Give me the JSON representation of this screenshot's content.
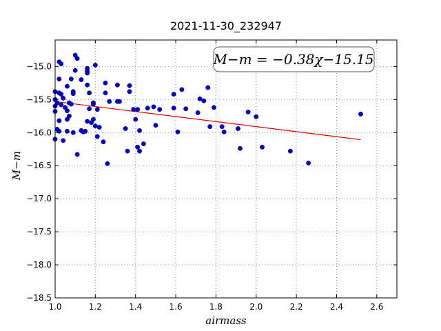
{
  "chart_data": {
    "type": "scatter",
    "title": "2021-11-30_232947",
    "xlabel": "airmass",
    "ylabel": "M−m",
    "xlim": [
      1.0,
      2.7
    ],
    "ylim": [
      -18.5,
      -14.6
    ],
    "y_inverted": true,
    "grid": true,
    "xticks": [
      1.0,
      1.2,
      1.4,
      1.6,
      1.8,
      2.0,
      2.2,
      2.4,
      2.6
    ],
    "xtick_labels": [
      "1.0",
      "1.2",
      "1.4",
      "1.6",
      "1.8",
      "2.0",
      "2.2",
      "2.4",
      "2.6"
    ],
    "yticks": [
      -15.0,
      -15.5,
      -16.0,
      -16.5,
      -17.0,
      -17.5,
      -18.0,
      -18.5
    ],
    "ytick_labels": [
      "−15.0",
      "−15.5",
      "−16.0",
      "−16.5",
      "−17.0",
      "−17.5",
      "−18.0",
      "−18.5"
    ],
    "annotation": "M−m = −0.38χ−15.15",
    "point_color": "#0000cc",
    "fit_color": "#dd0000",
    "points": [
      [
        1.0,
        -15.38
      ],
      [
        1.0,
        -15.5
      ],
      [
        1.0,
        -15.6
      ],
      [
        1.0,
        -15.68
      ],
      [
        1.0,
        -16.1
      ],
      [
        1.01,
        -15.95
      ],
      [
        1.01,
        -15.55
      ],
      [
        1.02,
        -14.93
      ],
      [
        1.02,
        -15.4
      ],
      [
        1.02,
        -15.82
      ],
      [
        1.02,
        -15.98
      ],
      [
        1.03,
        -14.96
      ],
      [
        1.02,
        -15.19
      ],
      [
        1.03,
        -15.42
      ],
      [
        1.03,
        -15.58
      ],
      [
        1.04,
        -15.48
      ],
      [
        1.04,
        -16.12
      ],
      [
        1.05,
        -15.62
      ],
      [
        1.06,
        -15.98
      ],
      [
        1.06,
        -15.3
      ],
      [
        1.06,
        -15.67
      ],
      [
        1.06,
        -15.8
      ],
      [
        1.07,
        -15.75
      ],
      [
        1.07,
        -15.55
      ],
      [
        1.08,
        -15.19
      ],
      [
        1.08,
        -15.57
      ],
      [
        1.09,
        -15.38
      ],
      [
        1.09,
        -15.41
      ],
      [
        1.09,
        -16.0
      ],
      [
        1.1,
        -14.83
      ],
      [
        1.1,
        -15.06
      ],
      [
        1.11,
        -14.88
      ],
      [
        1.11,
        -16.33
      ],
      [
        1.13,
        -15.97
      ],
      [
        1.13,
        -15.2
      ],
      [
        1.14,
        -15.99
      ],
      [
        1.15,
        -15.98
      ],
      [
        1.16,
        -15.83
      ],
      [
        1.16,
        -15.03
      ],
      [
        1.16,
        -15.07
      ],
      [
        1.16,
        -15.1
      ],
      [
        1.16,
        -15.28
      ],
      [
        1.17,
        -15.64
      ],
      [
        1.17,
        -15.4
      ],
      [
        1.18,
        -15.85
      ],
      [
        1.19,
        -15.55
      ],
      [
        1.19,
        -15.57
      ],
      [
        1.19,
        -15.8
      ],
      [
        1.2,
        -14.98
      ],
      [
        1.2,
        -15.9
      ],
      [
        1.21,
        -15.65
      ],
      [
        1.21,
        -16.06
      ],
      [
        1.22,
        -15.92
      ],
      [
        1.24,
        -16.14
      ],
      [
        1.25,
        -15.25
      ],
      [
        1.25,
        -15.4
      ],
      [
        1.26,
        -16.47
      ],
      [
        1.27,
        -15.53
      ],
      [
        1.31,
        -15.28
      ],
      [
        1.31,
        -15.53
      ],
      [
        1.32,
        -15.53
      ],
      [
        1.35,
        -15.94
      ],
      [
        1.36,
        -16.28
      ],
      [
        1.37,
        -15.29
      ],
      [
        1.37,
        -15.38
      ],
      [
        1.39,
        -15.65
      ],
      [
        1.4,
        -15.8
      ],
      [
        1.41,
        -15.65
      ],
      [
        1.41,
        -16.22
      ],
      [
        1.42,
        -15.97
      ],
      [
        1.42,
        -16.28
      ],
      [
        1.44,
        -16.17
      ],
      [
        1.46,
        -15.63
      ],
      [
        1.49,
        -15.61
      ],
      [
        1.5,
        -15.89
      ],
      [
        1.52,
        -15.65
      ],
      [
        1.59,
        -15.42
      ],
      [
        1.59,
        -15.63
      ],
      [
        1.61,
        -15.99
      ],
      [
        1.63,
        -15.35
      ],
      [
        1.65,
        -15.64
      ],
      [
        1.71,
        -15.7
      ],
      [
        1.72,
        -15.49
      ],
      [
        1.74,
        -15.52
      ],
      [
        1.76,
        -15.32
      ],
      [
        1.77,
        -15.91
      ],
      [
        1.79,
        -15.62
      ],
      [
        1.83,
        -15.91
      ],
      [
        1.84,
        -15.99
      ],
      [
        1.91,
        -15.94
      ],
      [
        1.92,
        -16.24
      ],
      [
        1.96,
        -15.69
      ],
      [
        2.0,
        -15.76
      ],
      [
        2.03,
        -16.22
      ],
      [
        2.17,
        -16.28
      ],
      [
        2.26,
        -16.46
      ],
      [
        2.52,
        -15.72
      ]
    ],
    "fit_line": {
      "slope": -0.38,
      "intercept": -15.15,
      "x_range": [
        1.0,
        2.52
      ]
    }
  }
}
